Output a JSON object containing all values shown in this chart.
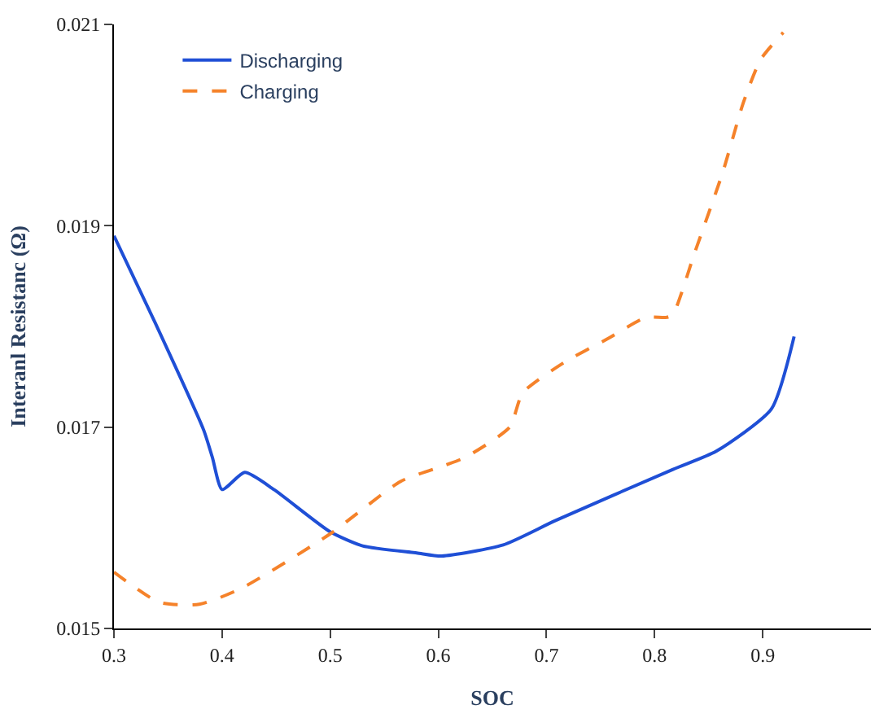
{
  "chart_data": {
    "type": "line",
    "xlabel": "SOC",
    "ylabel": "Interanl Resistanc (Ω)",
    "xlim": [
      0.3,
      1.0
    ],
    "xticks": [
      0.3,
      0.4,
      0.5,
      0.6,
      0.7,
      0.8,
      0.9
    ],
    "ylim": [
      0.015,
      0.021
    ],
    "yticks": [
      0.015,
      0.017,
      0.019,
      0.021
    ],
    "legend": "top left",
    "marker": "none",
    "series": [
      {
        "name": "Discharging",
        "color": "#1f4fd6",
        "line_style": "solid",
        "x": [
          0.3,
          0.338,
          0.383,
          0.391,
          0.4,
          0.421,
          0.448,
          0.5,
          0.53,
          0.58,
          0.603,
          0.66,
          0.708,
          0.817,
          0.857,
          0.908,
          0.929
        ],
        "values": [
          0.0189,
          0.01804,
          0.01697,
          0.0167,
          0.01638,
          0.01655,
          0.01638,
          0.01596,
          0.01582,
          0.01575,
          0.01572,
          0.01583,
          0.01607,
          0.01658,
          0.01676,
          0.01718,
          0.0179
        ]
      },
      {
        "name": "Charging",
        "color": "#f5822a",
        "line_style": "dashed",
        "x": [
          0.3,
          0.342,
          0.379,
          0.418,
          0.5,
          0.565,
          0.606,
          0.625,
          0.666,
          0.678,
          0.716,
          0.757,
          0.792,
          0.811,
          0.817,
          0.837,
          0.863,
          0.882,
          0.898,
          0.919
        ],
        "values": [
          0.01556,
          0.01526,
          0.01524,
          0.0154,
          0.01594,
          0.01646,
          0.01662,
          0.0167,
          0.017,
          0.01734,
          0.01764,
          0.01788,
          0.01809,
          0.01809,
          0.01812,
          0.01873,
          0.01953,
          0.02022,
          0.02065,
          0.02092
        ]
      }
    ]
  }
}
